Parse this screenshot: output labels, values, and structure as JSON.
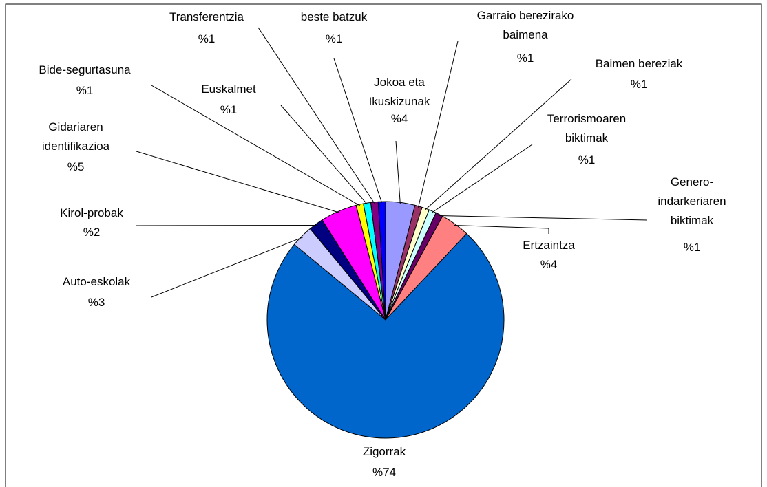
{
  "chart_data": {
    "type": "pie",
    "categories": [
      "Jokoa eta\nIkuskizunak",
      "Garraio berezirako\nbaimena",
      "Baimen bereziak",
      "Terrorismoaren\nbiktimak",
      "Genero-\nindarkeriaren\nbiktimak",
      "Ertzaintza",
      "Zigorrak",
      "Auto-eskolak",
      "Kirol-probak",
      "Gidariaren\nidentifikazioa",
      "Bide-segurtasuna",
      "Euskalmet",
      "Transferentzia",
      "beste batzuk"
    ],
    "values": [
      4,
      1,
      1,
      1,
      1,
      4,
      74,
      3,
      2,
      5,
      1,
      1,
      1,
      1
    ],
    "value_labels": [
      "%4",
      "%1",
      "%1",
      "%1",
      "%1",
      "%4",
      "%74",
      "%3",
      "%2",
      "%5",
      "%1",
      "%1",
      "%1",
      "%1"
    ],
    "colors": [
      "#9999ff",
      "#993366",
      "#ffffcc",
      "#ccffff",
      "#660066",
      "#ff8080",
      "#0066cc",
      "#ccccff",
      "#000080",
      "#ff00ff",
      "#ffff00",
      "#00ffff",
      "#800080",
      "#0000ff"
    ]
  }
}
